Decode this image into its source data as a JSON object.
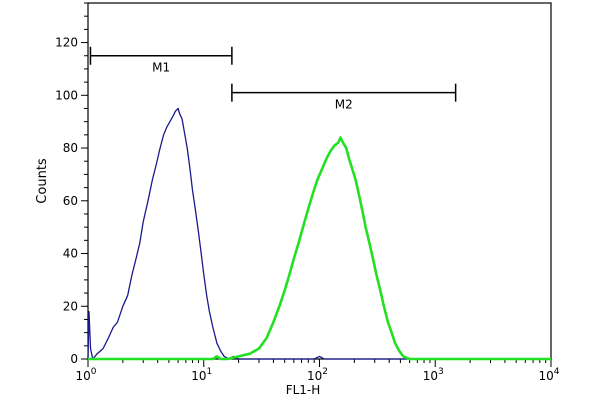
{
  "chart_data": {
    "type": "line",
    "title": "",
    "xlabel": "FL1-H",
    "ylabel": "Counts",
    "x_scale": "log",
    "xlim": [
      1,
      10000
    ],
    "ylim": [
      0,
      135
    ],
    "grid": false,
    "x_ticks": [
      {
        "value": 1,
        "base": "10",
        "exp": "0"
      },
      {
        "value": 10,
        "base": "10",
        "exp": "1"
      },
      {
        "value": 100,
        "base": "10",
        "exp": "2"
      },
      {
        "value": 1000,
        "base": "10",
        "exp": "3"
      },
      {
        "value": 10000,
        "base": "10",
        "exp": "4"
      }
    ],
    "y_ticks": [
      0,
      20,
      40,
      60,
      80,
      100,
      120
    ],
    "series": [
      {
        "color": "#1a1a8c",
        "points": [
          [
            1.0,
            0
          ],
          [
            1.02,
            18
          ],
          [
            1.05,
            4
          ],
          [
            1.1,
            0
          ],
          [
            1.2,
            2
          ],
          [
            1.35,
            4
          ],
          [
            1.5,
            8
          ],
          [
            1.65,
            12
          ],
          [
            1.8,
            14
          ],
          [
            2.0,
            20
          ],
          [
            2.2,
            24
          ],
          [
            2.4,
            32
          ],
          [
            2.6,
            38
          ],
          [
            2.8,
            44
          ],
          [
            3.0,
            52
          ],
          [
            3.3,
            60
          ],
          [
            3.6,
            68
          ],
          [
            3.9,
            74
          ],
          [
            4.2,
            80
          ],
          [
            4.5,
            85
          ],
          [
            4.8,
            88
          ],
          [
            5.1,
            90
          ],
          [
            5.4,
            92
          ],
          [
            5.7,
            94
          ],
          [
            6.0,
            95
          ],
          [
            6.2,
            93
          ],
          [
            6.5,
            91
          ],
          [
            6.8,
            86
          ],
          [
            7.2,
            80
          ],
          [
            7.6,
            72
          ],
          [
            8.0,
            64
          ],
          [
            8.5,
            56
          ],
          [
            9.0,
            48
          ],
          [
            9.5,
            40
          ],
          [
            10.0,
            32
          ],
          [
            10.6,
            24
          ],
          [
            11.2,
            18
          ],
          [
            12.0,
            12
          ],
          [
            13.0,
            6
          ],
          [
            14.0,
            3
          ],
          [
            15.0,
            1
          ],
          [
            16.5,
            0
          ],
          [
            18.0,
            1
          ],
          [
            20.0,
            0
          ],
          [
            30,
            0
          ],
          [
            60,
            0
          ],
          [
            90,
            0
          ],
          [
            100,
            1
          ],
          [
            110,
            0
          ],
          [
            300,
            0
          ],
          [
            1000,
            0
          ],
          [
            10000,
            0
          ]
        ]
      },
      {
        "color": "#22e022",
        "points": [
          [
            1.0,
            0
          ],
          [
            12,
            0
          ],
          [
            13,
            1
          ],
          [
            14,
            0
          ],
          [
            16,
            0
          ],
          [
            20,
            1
          ],
          [
            25,
            2
          ],
          [
            30,
            4
          ],
          [
            35,
            8
          ],
          [
            40,
            14
          ],
          [
            45,
            20
          ],
          [
            50,
            26
          ],
          [
            55,
            32
          ],
          [
            60,
            38
          ],
          [
            66,
            44
          ],
          [
            72,
            50
          ],
          [
            80,
            57
          ],
          [
            88,
            63
          ],
          [
            96,
            68
          ],
          [
            105,
            72
          ],
          [
            115,
            76
          ],
          [
            125,
            79
          ],
          [
            135,
            81
          ],
          [
            145,
            82
          ],
          [
            152,
            84
          ],
          [
            160,
            82
          ],
          [
            170,
            80
          ],
          [
            180,
            76
          ],
          [
            192,
            72
          ],
          [
            205,
            68
          ],
          [
            220,
            62
          ],
          [
            235,
            56
          ],
          [
            250,
            50
          ],
          [
            270,
            44
          ],
          [
            290,
            38
          ],
          [
            310,
            32
          ],
          [
            335,
            26
          ],
          [
            360,
            20
          ],
          [
            390,
            14
          ],
          [
            420,
            10
          ],
          [
            450,
            6
          ],
          [
            490,
            3
          ],
          [
            530,
            1
          ],
          [
            600,
            0
          ],
          [
            1000,
            0
          ],
          [
            10000,
            0
          ]
        ]
      }
    ],
    "markers": [
      {
        "label": "M1",
        "start": 1.05,
        "end": 17.5,
        "y": 115
      },
      {
        "label": "M2",
        "start": 17.5,
        "end": 1500,
        "y": 101
      }
    ]
  }
}
